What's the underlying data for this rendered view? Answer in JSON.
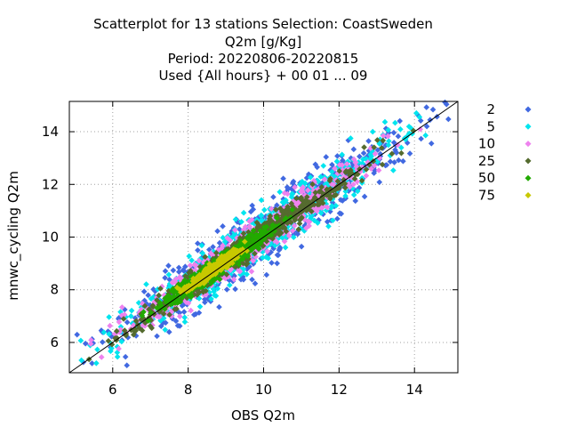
{
  "chart_data": {
    "type": "scatter",
    "title_lines": [
      "Scatterplot for   13 stations Selection: CoastSweden",
      "Q2m [g/Kg]",
      "Period: 20220806-20220815",
      "Used {All hours} + 00 01 ... 09"
    ],
    "xlabel": "OBS Q2m",
    "ylabel": "mnwc_cycling Q2m",
    "xlim": [
      4.85,
      15.15
    ],
    "ylim": [
      4.85,
      15.15
    ],
    "x_ticks": [
      6,
      8,
      10,
      12,
      14
    ],
    "y_ticks": [
      6,
      8,
      10,
      12,
      14
    ],
    "grid": true,
    "diagonal": true,
    "legend_position": "right",
    "series": [
      {
        "name": "2",
        "color": "#4169e1",
        "spread": 0.75,
        "frac": [
          0.02,
          0.98
        ]
      },
      {
        "name": "5",
        "color": "#00e5ee",
        "spread": 0.6,
        "frac": [
          0.04,
          0.94
        ]
      },
      {
        "name": "10",
        "color": "#ee82ee",
        "spread": 0.45,
        "frac": [
          0.07,
          0.85
        ]
      },
      {
        "name": "25",
        "color": "#556b2f",
        "spread": 0.32,
        "frac": [
          0.1,
          0.8
        ]
      },
      {
        "name": "50",
        "color": "#22aa00",
        "spread": 0.22,
        "frac": [
          0.22,
          0.55
        ]
      },
      {
        "name": "75",
        "color": "#c8c800",
        "spread": 0.12,
        "frac": [
          0.3,
          0.45
        ]
      }
    ]
  }
}
